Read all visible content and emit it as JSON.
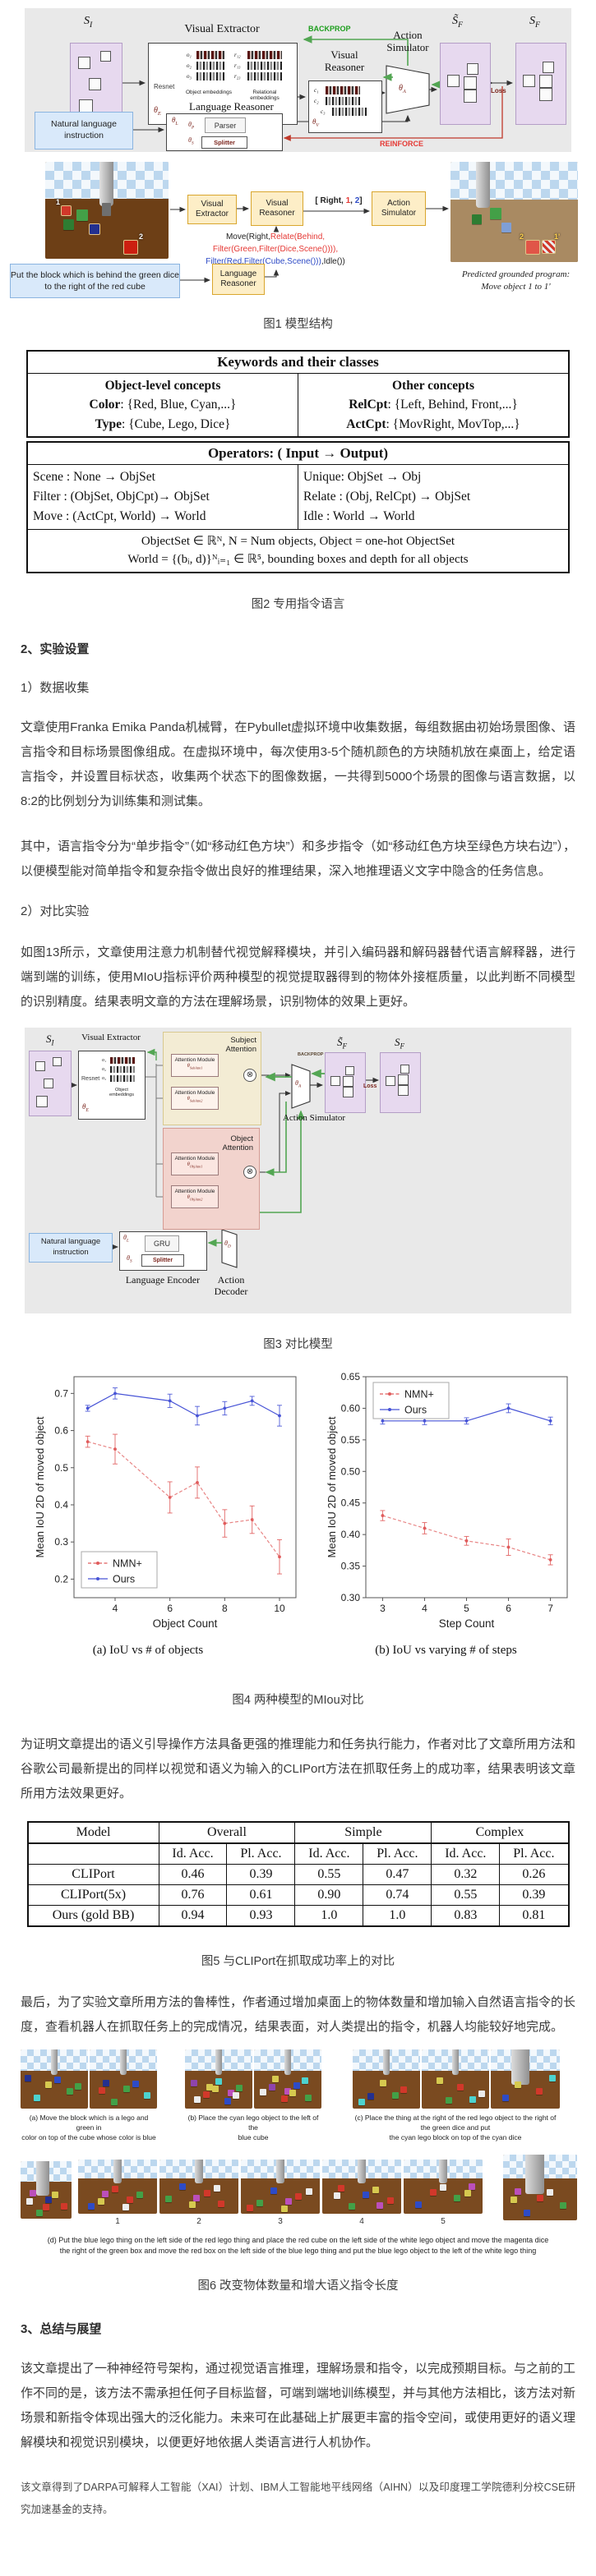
{
  "palette": {
    "red": "#d1382a",
    "green": "#43a047",
    "dark_green": "#2e7d32",
    "blue": "#2e4bc6",
    "navy": "#23308f",
    "cyan": "#4dd3cf",
    "yellow": "#d6c94f",
    "magenta": "#bb4fbb",
    "white": "#ececec",
    "purple": "#8e44ad"
  },
  "fig1": {
    "si": {
      "base": "S",
      "sub": "I"
    },
    "sf_pred": {
      "base": "S̃",
      "sub": "F"
    },
    "sf": {
      "base": "S",
      "sub": "F"
    },
    "visual_extractor": "Visual Extractor",
    "backprop": "BACKPROP",
    "visual_reasoner": "Visual Reasoner",
    "action_simulator": "Action Simulator",
    "resnet": "Resnet",
    "obj_labels": [
      "o₁",
      "o₂",
      "o₃"
    ],
    "rel_labels": [
      "r₁₂",
      "r₁₃",
      "r₂₃"
    ],
    "c_labels": [
      "c₁",
      "c₂",
      "c₃"
    ],
    "object_embeddings": "Object embeddings",
    "relational_embeddings": "Relational embeddings",
    "thetas": {
      "e": {
        "base": "θ",
        "sub": "E"
      },
      "v": {
        "base": "θ",
        "sub": "V"
      },
      "a": {
        "base": "θ",
        "sub": "A"
      },
      "l": {
        "base": "θ",
        "sub": "L"
      },
      "p": {
        "base": "θ",
        "sub": "P"
      },
      "s": {
        "base": "θ",
        "sub": "S"
      }
    },
    "loss": "Loss",
    "language_reasoner": "Language Reasoner",
    "parser": "Parser",
    "splitter": "Splitter",
    "nl_instruction": "Natural language instruction",
    "reinforce": "REINFORCE"
  },
  "fig1b": {
    "instruction": "Put the block which is behind the green dice to the right of the red cube",
    "visual_extractor": "Visual Extractor",
    "visual_reasoner": "Visual Reasoner",
    "action_simulator": "Action Simulator",
    "language_reasoner": "Language Reasoner",
    "action_tuple": [
      {
        "text": "[ Right,",
        "color": "#222222"
      },
      {
        "text": " 1",
        "color": "#e53935"
      },
      {
        "text": ",",
        "color": "#222222"
      },
      {
        "text": " 2",
        "color": "#2e4bc6"
      },
      {
        "text": "]",
        "color": "#222222"
      }
    ],
    "program_lines": [
      [
        {
          "text": "Move(Right,",
          "color": "#222222"
        },
        {
          "text": "Relate(Behind,",
          "color": "#e53935"
        }
      ],
      [
        {
          "text": "Filter(Green,Filter(Dice,Scene()))),",
          "color": "#e53935"
        }
      ],
      [
        {
          "text": "Filter(Red,Filter(Cube,Scene()))",
          "color": "#2e4bc6"
        },
        {
          "text": ",Idle())",
          "color": "#222222"
        }
      ]
    ],
    "left_scene_labels": [
      "1",
      "2"
    ],
    "right_scene_labels": [
      "2",
      "1'"
    ],
    "predicted_line1": "Predicted grounded program:",
    "predicted_line2": "Move object 1 to 1'"
  },
  "caption1": "图1 模型结构",
  "keywords_table": {
    "title": "Keywords and their classes",
    "left_title": "Object-level concepts",
    "left_rows": [
      {
        "k": "Color",
        "v": ": {Red, Blue, Cyan,...}"
      },
      {
        "k": "Type",
        "v": ": {Cube, Lego, Dice}"
      }
    ],
    "right_title": "Other concepts",
    "right_rows": [
      {
        "k": "RelCpt",
        "v": ": {Left, Behind, Front,...}"
      },
      {
        "k": "ActCpt",
        "v": ": {MovRight, MovTop,...}"
      }
    ]
  },
  "operators_table": {
    "title": "Operators: ( Input → Output)",
    "left_rows": [
      "Scene : None → ObjSet",
      "Filter : (ObjSet, ObjCpt)→ ObjSet",
      "Move : (ActCpt, World) → World"
    ],
    "right_rows": [
      "Unique: ObjSet → Obj",
      "Relate : (Obj, RelCpt) → ObjSet",
      "Idle : World → World"
    ],
    "footer": [
      "ObjectSet ∈ ℝᴺ, N = Num objects, Object = one-hot ObjectSet",
      "World = {(bᵢ, d)}ᴺᵢ₌₁ ∈ ℝ⁵, bounding boxes and depth for all objects"
    ]
  },
  "caption2": "图2 专用指令语言",
  "sections": {
    "h2": "2、实验设置",
    "sub1": "1）数据收集",
    "p1": "文章使用Franka Emika Panda机械臂，在Pybullet虚拟环境中收集数据，每组数据由初始场景图像、语言指令和目标场景图像组成。在虚拟环境中，每次使用3-5个随机颜色的方块随机放在桌面上，给定语言指令，并设置目标状态，收集两个状态下的图像数据，一共得到5000个场景的图像与语言数据，以8:2的比例划分为训练集和测试集。",
    "p2": "其中，语言指令分为“单步指令”（如“移动红色方块”）和多步指令（如“移动红色方块至绿色方块右边”），以便模型能对简单指令和复杂指令做出良好的推理结果，深入地推理语义文字中隐含的任务信息。",
    "sub2": "2）对比实验",
    "p3": "如图13所示，文章使用注意力机制替代视觉解释模块，并引入编码器和解码器替代语言解释器，进行端到端的训练，使用MIoU指标评价两种模型的视觉提取器得到的物体外接框质量，以此判断不同模型的识别精度。结果表明文章的方法在理解场景，识别物体的效果上更好。",
    "p4": "为证明文章提出的语义引导操作方法具备更强的推理能力和任务执行能力，作者对比了文章所用方法和谷歌公司最新提出的同样以视觉和语义为输入的CLIPort方法在抓取任务上的成功率，结果表明该文章所用方法效果更好。",
    "p5": "最后，为了实验文章所用方法的鲁棒性，作者通过增加桌面上的物体数量和增加输入自然语言指令的长度，查看机器人在抓取任务上的完成情况，结果表面，对人类提出的指令，机器人均能较好地完成。",
    "h3": "3、总结与展望",
    "p6": "该文章提出了一种神经符号架构，通过视觉语言推理，理解场景和指令，以完成预期目标。与之前的工作不同的是，该方法不需承担任何子目标监督，可端到端地训练模型，并与其他方法相比，该方法对新场景和新指令体现出强大的泛化能力。未来可在此基础上扩展更丰富的指令空间，或使用更好的语义理解模块和视觉识别模块，以便更好地依据人类语言进行人机协作。",
    "p7": "该文章得到了DARPA可解释人工智能（XAI）计划、IBM人工智能地平线网络（AIHN）以及印度理工学院德利分校CSE研究加速基金的支持。"
  },
  "fig3": {
    "subject_attention": "Subject Attention",
    "object_attention": "Object Attention",
    "attention_module": "Attention Module",
    "thetas": {
      "sub1": {
        "base": "θ",
        "sub": "SubAttn1"
      },
      "sub2": {
        "base": "θ",
        "sub": "SubAttn2"
      },
      "obj1": {
        "base": "θ",
        "sub": "ObjAttn1"
      },
      "obj2": {
        "base": "θ",
        "sub": "ObjAttn2"
      },
      "a": {
        "base": "θ",
        "sub": "A"
      },
      "e": {
        "base": "θ",
        "sub": "E"
      },
      "l": {
        "base": "θ",
        "sub": "L"
      },
      "s": {
        "base": "θ",
        "sub": "S"
      },
      "d": {
        "base": "θ",
        "sub": "D"
      }
    },
    "gru": "GRU",
    "splitter": "Splitter",
    "language_encoder": "Language Encoder",
    "action_decoder": "Action Decoder",
    "action_simulator": "Action Simulator",
    "visual_extractor": "Visual Extractor",
    "backprop": "BACKPROP",
    "loss": "Loss",
    "nl_instruction": "Natural language instruction",
    "resnet": "Resnet",
    "object_embeddings": "Object embeddings",
    "obj_labels": [
      "o₁",
      "o₂",
      "o₃"
    ],
    "si": {
      "base": "S",
      "sub": "I"
    },
    "sf_pred": {
      "base": "S̃",
      "sub": "F"
    },
    "sf": {
      "base": "S",
      "sub": "F"
    }
  },
  "caption3": "图3 对比模型",
  "chart_data": [
    {
      "type": "line",
      "title": "",
      "xlabel": "Object Count",
      "ylabel": "Mean IoU 2D of moved object",
      "xlim": [
        2.5,
        10.6
      ],
      "ylim": [
        0.15,
        0.745
      ],
      "x_ticks": [
        4,
        6,
        8,
        10
      ],
      "x_tick_labels": [
        "4",
        "6",
        "8",
        "10"
      ],
      "y_ticks": [
        0.2,
        0.3,
        0.4,
        0.5,
        0.6,
        0.7
      ],
      "y_tick_labels": [
        "0.2",
        "0.3",
        "0.4",
        "0.5",
        "0.6",
        "0.7"
      ],
      "grid": false,
      "legend_pos": "bl",
      "series": [
        {
          "name": "NMN+",
          "color": "#e05c5c",
          "style": "dashed",
          "x": [
            3,
            4,
            6,
            7,
            8,
            9,
            10
          ],
          "y": [
            0.57,
            0.55,
            0.42,
            0.46,
            0.35,
            0.36,
            0.26
          ],
          "err": [
            0.015,
            0.04,
            0.042,
            0.042,
            0.037,
            0.037,
            0.046
          ]
        },
        {
          "name": "Ours",
          "color": "#4753d6",
          "style": "solid",
          "x": [
            3,
            4,
            6,
            7,
            8,
            9,
            10
          ],
          "y": [
            0.66,
            0.7,
            0.68,
            0.64,
            0.66,
            0.68,
            0.64
          ],
          "err": [
            0.008,
            0.015,
            0.018,
            0.025,
            0.018,
            0.012,
            0.028
          ]
        }
      ]
    },
    {
      "type": "line",
      "title": "",
      "xlabel": "Step Count",
      "ylabel": "Mean IoU 2D of moved object",
      "xlim": [
        2.6,
        7.4
      ],
      "ylim": [
        0.3,
        0.65
      ],
      "x_ticks": [
        3,
        4,
        5,
        6,
        7
      ],
      "x_tick_labels": [
        "3",
        "4",
        "5",
        "6",
        "7"
      ],
      "y_ticks": [
        0.3,
        0.35,
        0.4,
        0.45,
        0.5,
        0.55,
        0.6,
        0.65
      ],
      "y_tick_labels": [
        "0.30",
        "0.35",
        "0.40",
        "0.45",
        "0.50",
        "0.55",
        "0.60",
        "0.65"
      ],
      "grid": false,
      "legend_pos": "tl",
      "series": [
        {
          "name": "NMN+",
          "color": "#e05c5c",
          "style": "dashed",
          "x": [
            3,
            4,
            5,
            6,
            7
          ],
          "y": [
            0.43,
            0.41,
            0.39,
            0.38,
            0.36
          ],
          "err": [
            0.008,
            0.009,
            0.007,
            0.013,
            0.008
          ]
        },
        {
          "name": "Ours",
          "color": "#4753d6",
          "style": "solid",
          "x": [
            3,
            4,
            5,
            6,
            7
          ],
          "y": [
            0.58,
            0.58,
            0.58,
            0.6,
            0.58
          ],
          "err": [
            0.005,
            0.006,
            0.005,
            0.007,
            0.006
          ]
        }
      ]
    }
  ],
  "chart_captions": {
    "a": "(a) IoU vs # of objects",
    "b": "(b) IoU vs varying # of steps"
  },
  "caption4": "图4 两种模型的MIou对比",
  "table5": {
    "col_groups": [
      "Model",
      "Overall",
      "Simple",
      "Complex"
    ],
    "sub_headers": [
      "Id. Acc.",
      "Pl. Acc."
    ],
    "rows": [
      {
        "model": "CLIPort",
        "values": [
          "0.46",
          "0.39",
          "0.55",
          "0.47",
          "0.32",
          "0.26"
        ]
      },
      {
        "model": "CLIPort(5x)",
        "values": [
          "0.76",
          "0.61",
          "0.90",
          "0.74",
          "0.55",
          "0.39"
        ]
      },
      {
        "model": "Ours (gold BB)",
        "values": [
          "0.94",
          "0.93",
          "1.0",
          "1.0",
          "0.83",
          "0.81"
        ]
      }
    ]
  },
  "caption5": "图5 与CLIPort在抓取成功率上的对比",
  "fig6": {
    "captions": {
      "a": [
        "(a) Move the block which is a lego and green in",
        "color on top of the cube whose color is blue"
      ],
      "b": [
        "(b) Place the cyan lego object to the left of the",
        "blue cube"
      ],
      "c": [
        "(c) Place the thing at the right of the red lego object to the right of the green dice and put",
        "the cyan lego block on top of the cyan dice"
      ],
      "d": [
        "(d) Put the blue lego thing on the left side of the red lego thing and place the red cube on the left side of the white lego object and move the magenta dice",
        "the right of the green box and move the red box on the left side of the blue lego thing and put the blue lego object to the left of the white lego thing"
      ]
    },
    "step_labels": [
      "1",
      "2",
      "3",
      "4",
      "5"
    ],
    "row1_scenes": [
      [
        "navy",
        "yellow",
        "green",
        "cyan",
        "blue",
        "green"
      ],
      [
        "navy",
        "green",
        "cyan",
        "green",
        "blue",
        "red"
      ],
      [
        "yellow",
        "magenta",
        "white",
        "cyan",
        "green",
        "red",
        "blue",
        "purple",
        "yellow",
        "white"
      ],
      [
        "magenta",
        "green",
        "yellow",
        "blue",
        "white",
        "red",
        "cyan",
        "purple",
        "yellow"
      ],
      [
        "green",
        "cyan",
        "yellow",
        "red",
        "navy"
      ],
      [
        "cyan",
        "yellow",
        "red",
        "white",
        "green"
      ],
      [
        "cyan",
        "yellow",
        "red",
        "blue"
      ]
    ],
    "row2_scenes": [
      [
        "magenta",
        "navy",
        "red",
        "green",
        "yellow",
        "white",
        "red"
      ],
      [
        "magenta",
        "red",
        "blue",
        "red",
        "green",
        "yellow",
        "white"
      ],
      [
        "magenta",
        "red",
        "blue",
        "red",
        "green",
        "yellow",
        "white"
      ],
      [
        "magenta",
        "red",
        "blue",
        "red",
        "green",
        "yellow",
        "white"
      ],
      [
        "magenta",
        "red",
        "blue",
        "red",
        "green",
        "yellow",
        "white"
      ],
      [
        "magenta",
        "red",
        "green",
        "blue",
        "white",
        "yellow"
      ],
      [
        "magenta",
        "red",
        "green",
        "blue",
        "white",
        "yellow"
      ]
    ]
  },
  "caption6": "图6 改变物体数量和增大语义指令长度"
}
